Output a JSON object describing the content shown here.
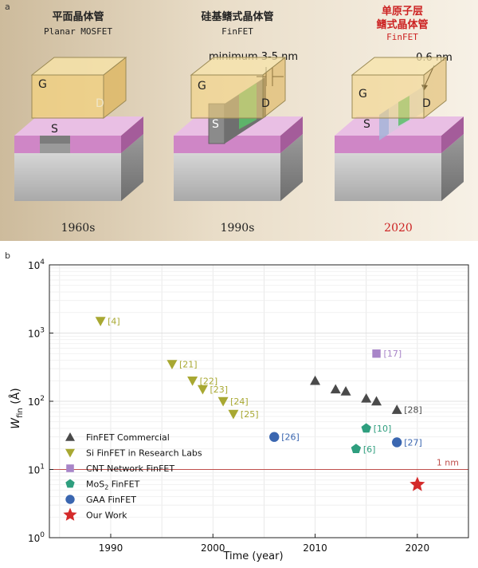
{
  "panel_a": {
    "label": "a",
    "devices": [
      {
        "title_cn": "平面晶体管",
        "title_en": "Planar MOSFET",
        "year": "1960s",
        "gate": "G",
        "source": "S",
        "drain": "D"
      },
      {
        "title_cn": "硅基鳍式晶体管",
        "title_en": "FinFET",
        "year": "1990s",
        "gate": "G",
        "source": "S",
        "drain": "D",
        "annotation": "minimum 3-5 nm"
      },
      {
        "title_cn_1": "单原子层",
        "title_cn_2": "鳍式晶体管",
        "title_en": "FinFET",
        "year": "2020",
        "gate": "G",
        "source": "S",
        "drain": "D",
        "annotation": "0.6 nm"
      }
    ],
    "colors": {
      "highlight": "#cc2222",
      "gate": "#f0c860",
      "oxide": "#d480c8",
      "channel": "#5cc06a",
      "substrate": "#c8c8c8"
    }
  },
  "panel_b": {
    "label": "b",
    "chart_data": {
      "type": "scatter",
      "xlabel": "Time (year)",
      "ylabel_main": "W",
      "ylabel_sub": "fin",
      "ylabel_unit": " (Å)",
      "xlim": [
        1984,
        2025
      ],
      "ylim": [
        1,
        10000
      ],
      "yscale": "log",
      "xticks": [
        1990,
        2000,
        2010,
        2020
      ],
      "yticks": [
        {
          "value": 1,
          "base": "10",
          "exp": "0"
        },
        {
          "value": 10,
          "base": "10",
          "exp": "1"
        },
        {
          "value": 100,
          "base": "10",
          "exp": "2"
        },
        {
          "value": 1000,
          "base": "10",
          "exp": "3"
        },
        {
          "value": 10000,
          "base": "10",
          "exp": "4"
        }
      ],
      "grid": true,
      "reference_line": {
        "y": 10,
        "label": "1 nm",
        "color": "#c0504d"
      },
      "series": [
        {
          "name": "FinFET Commercial",
          "marker": "triangle-up",
          "color": "#4a4a4a",
          "points": [
            {
              "x": 2010,
              "y": 200,
              "label": ""
            },
            {
              "x": 2012,
              "y": 150,
              "label": ""
            },
            {
              "x": 2013,
              "y": 140,
              "label": ""
            },
            {
              "x": 2015,
              "y": 110,
              "label": ""
            },
            {
              "x": 2016,
              "y": 100,
              "label": ""
            },
            {
              "x": 2018,
              "y": 75,
              "label": "[28]"
            }
          ]
        },
        {
          "name": "Si FinFET in Research Labs",
          "marker": "triangle-down",
          "color": "#a8a832",
          "points": [
            {
              "x": 1989,
              "y": 1500,
              "label": "[4]"
            },
            {
              "x": 1996,
              "y": 350,
              "label": "[21]"
            },
            {
              "x": 1998,
              "y": 200,
              "label": "[22]"
            },
            {
              "x": 1999,
              "y": 150,
              "label": "[23]"
            },
            {
              "x": 2001,
              "y": 100,
              "label": "[24]"
            },
            {
              "x": 2002,
              "y": 65,
              "label": "[25]"
            }
          ]
        },
        {
          "name": "CNT Network FinFET",
          "marker": "square",
          "color": "#a885c8",
          "points": [
            {
              "x": 2016,
              "y": 500,
              "label": "[17]"
            }
          ]
        },
        {
          "name": "MoS2 FinFET",
          "name_main": "MoS",
          "name_sub": "2",
          "name_rest": "  FinFET",
          "marker": "pentagon",
          "color": "#2e9e7e",
          "points": [
            {
              "x": 2015,
              "y": 40,
              "label": "[10]"
            },
            {
              "x": 2014,
              "y": 20,
              "label": "[6]"
            }
          ]
        },
        {
          "name": "GAA FinFET",
          "marker": "circle",
          "color": "#3a66b0",
          "points": [
            {
              "x": 2006,
              "y": 30,
              "label": "[26]"
            },
            {
              "x": 2018,
              "y": 25,
              "label": "[27]"
            }
          ]
        },
        {
          "name": "Our Work",
          "marker": "star",
          "color": "#d42a2a",
          "points": [
            {
              "x": 2020,
              "y": 6,
              "label": ""
            }
          ]
        }
      ]
    }
  }
}
